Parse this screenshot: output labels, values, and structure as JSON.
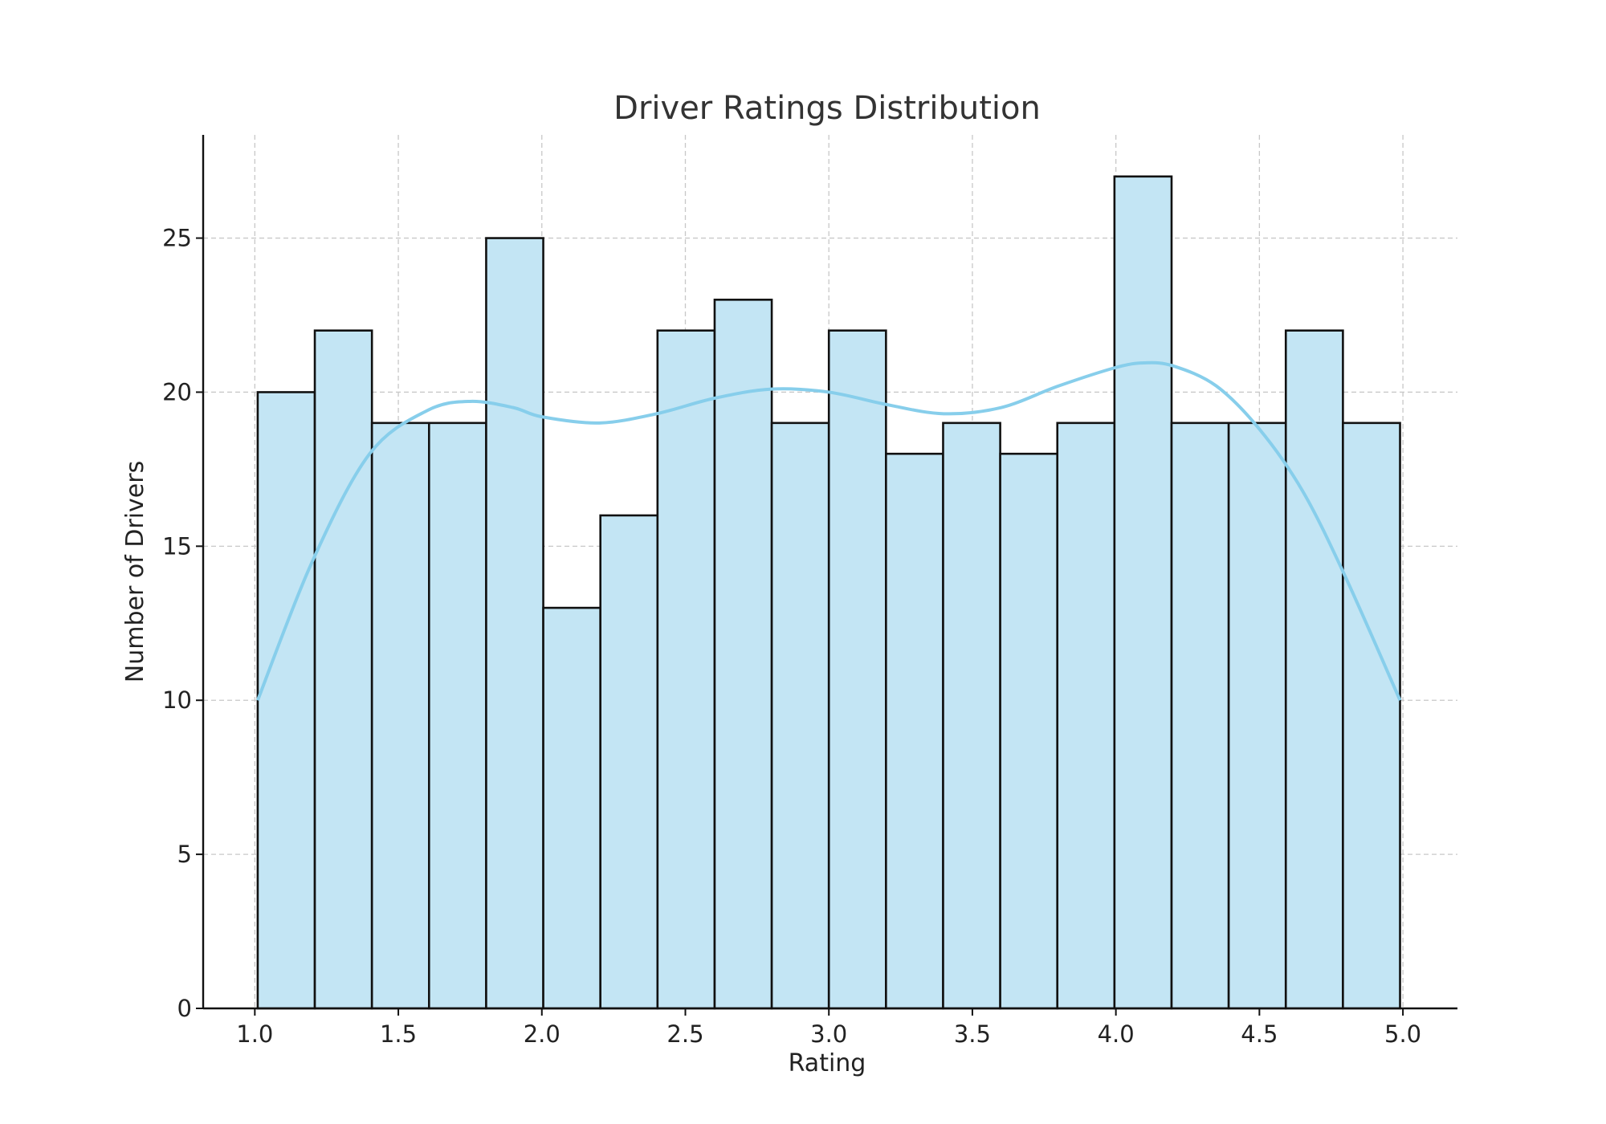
{
  "chart_data": {
    "type": "bar",
    "subtype": "histogram_with_kde",
    "title": "Driver Ratings Distribution",
    "xlabel": "Rating",
    "ylabel": "Number of Drivers",
    "xlim": [
      0.82,
      5.19
    ],
    "ylim": [
      0,
      28.35
    ],
    "xticks": [
      1.0,
      1.5,
      2.0,
      2.5,
      3.0,
      3.5,
      4.0,
      4.5,
      5.0
    ],
    "xtick_labels": [
      "1.0",
      "1.5",
      "2.0",
      "2.5",
      "3.0",
      "3.5",
      "4.0",
      "4.5",
      "5.0"
    ],
    "yticks": [
      0,
      5,
      10,
      15,
      20,
      25
    ],
    "ytick_labels": [
      "0",
      "5",
      "10",
      "15",
      "20",
      "25"
    ],
    "grid": true,
    "bins": {
      "start": 1.01,
      "end": 4.99,
      "edges": [
        1.01,
        1.209,
        1.408,
        1.607,
        1.806,
        2.005,
        2.204,
        2.403,
        2.602,
        2.801,
        3.0,
        3.199,
        3.398,
        3.597,
        3.796,
        3.995,
        4.194,
        4.393,
        4.592,
        4.791,
        4.99
      ],
      "counts": [
        20,
        22,
        19,
        19,
        25,
        13,
        16,
        22,
        23,
        19,
        22,
        18,
        19,
        18,
        19,
        27,
        19,
        19,
        22,
        19
      ]
    },
    "kde": {
      "x": [
        1.01,
        1.2,
        1.4,
        1.6,
        1.75,
        1.9,
        2.0,
        2.2,
        2.4,
        2.6,
        2.8,
        3.0,
        3.2,
        3.4,
        3.6,
        3.8,
        4.0,
        4.1,
        4.2,
        4.35,
        4.5,
        4.65,
        4.8,
        4.99
      ],
      "y": [
        10.0,
        14.5,
        18.0,
        19.4,
        19.7,
        19.5,
        19.2,
        19.0,
        19.3,
        19.8,
        20.1,
        20.0,
        19.6,
        19.3,
        19.5,
        20.2,
        20.8,
        20.95,
        20.85,
        20.2,
        18.8,
        16.8,
        14.0,
        10.0
      ]
    },
    "colors": {
      "bar_fill": "#c3e5f4",
      "bar_edge": "#111111",
      "kde_line": "#87ceeb",
      "grid": "#c8c8c8",
      "text": "#222222",
      "title": "#333333"
    }
  }
}
